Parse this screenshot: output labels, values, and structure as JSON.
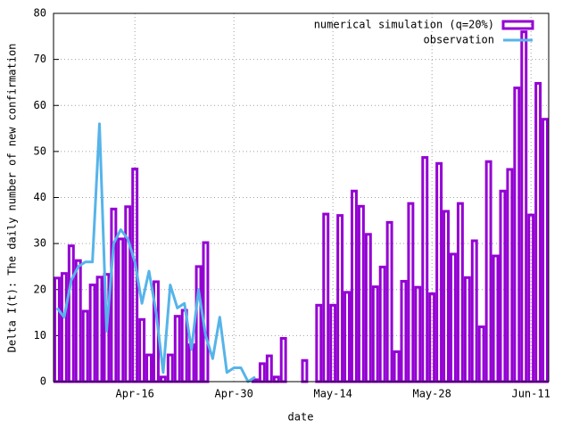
{
  "chart_data": {
    "type": "bar",
    "xlabel": "date",
    "ylabel": "Delta I(t): The daily number of new confirmation",
    "categories": [
      null,
      null,
      null,
      null,
      null,
      null,
      null,
      null,
      null,
      null,
      null,
      "Apr-16",
      null,
      null,
      null,
      null,
      null,
      null,
      null,
      null,
      null,
      null,
      null,
      null,
      null,
      "Apr-30",
      null,
      null,
      null,
      null,
      null,
      null,
      null,
      null,
      null,
      null,
      null,
      null,
      null,
      "May-14",
      null,
      null,
      null,
      null,
      null,
      null,
      null,
      null,
      null,
      null,
      null,
      null,
      null,
      "May-28",
      null,
      null,
      null,
      null,
      null,
      null,
      null,
      null,
      null,
      null,
      null,
      null,
      null,
      "Jun-11",
      null,
      null
    ],
    "series": [
      {
        "name": "numerical simulation (q=20%)",
        "type": "bar",
        "color": "#9400d3",
        "values": [
          22.5,
          23.5,
          29.5,
          26.3,
          15.3,
          21,
          22.7,
          23.3,
          37.5,
          31,
          38,
          46.2,
          13.5,
          5.8,
          21.7,
          1,
          5.8,
          14.2,
          15.5,
          8,
          25,
          30.2,
          0,
          0,
          0,
          0,
          0,
          0,
          0.4,
          3.9,
          5.6,
          1,
          9.4,
          0,
          0,
          4.6,
          0,
          16.6,
          36.4,
          16.6,
          36.1,
          19.4,
          41.4,
          38.1,
          32,
          20.6,
          24.9,
          34.6,
          6.5,
          21.8,
          38.7,
          20.5,
          48.7,
          19.1,
          47.4,
          37,
          27.7,
          38.7,
          22.6,
          30.6,
          11.9,
          47.8,
          27.3,
          41.4,
          46.1,
          63.8,
          76,
          36.2,
          64.8,
          57
        ]
      },
      {
        "name": "observation",
        "type": "line",
        "color": "#56b4e9",
        "values": [
          16,
          14,
          22,
          25,
          26,
          26,
          56,
          11,
          30,
          33,
          31,
          26,
          17,
          24,
          15,
          2,
          21,
          16,
          17,
          7,
          20,
          10,
          5,
          14,
          2,
          3,
          3,
          0,
          1,
          null,
          null,
          null,
          null,
          null,
          null,
          null,
          null,
          null,
          null,
          null,
          null,
          null,
          null,
          null,
          null,
          null,
          null,
          null,
          null,
          null,
          null,
          null,
          null,
          null,
          null,
          null,
          null,
          null,
          null,
          null,
          null,
          null,
          null,
          null,
          null,
          null,
          null,
          null,
          null,
          null
        ]
      }
    ],
    "ylim": [
      0,
      80
    ],
    "yticks": [
      0,
      10,
      20,
      30,
      40,
      50,
      60,
      70,
      80
    ],
    "grid": true,
    "legend": "top-right"
  }
}
